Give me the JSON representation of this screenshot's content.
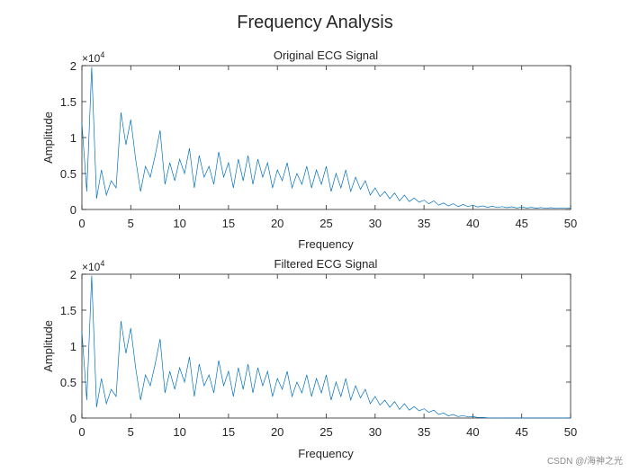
{
  "figure": {
    "title": "Frequency Analysis",
    "watermark": "CSDN @/海神之光"
  },
  "colors": {
    "series": "#0072BD",
    "axis": "#262626"
  },
  "chart_data": [
    {
      "type": "line",
      "title": "Original ECG Signal",
      "xlabel": "Frequency",
      "ylabel": "Amplitude",
      "xlim": [
        0,
        50
      ],
      "ylim": [
        0,
        20000
      ],
      "exponent_label": "×10",
      "exponent_power": "4",
      "xticks": [
        0,
        5,
        10,
        15,
        20,
        25,
        30,
        35,
        40,
        45,
        50
      ],
      "yticks": [
        0,
        5000,
        10000,
        15000,
        20000
      ],
      "ytick_labels": [
        "0",
        "0.5",
        "1",
        "1.5",
        "2"
      ],
      "x": [
        0,
        0.5,
        1,
        1.5,
        2,
        2.5,
        3,
        3.5,
        4,
        4.5,
        5,
        5.5,
        6,
        6.5,
        7,
        7.5,
        8,
        8.5,
        9,
        9.5,
        10,
        10.5,
        11,
        11.5,
        12,
        12.5,
        13,
        13.5,
        14,
        14.5,
        15,
        15.5,
        16,
        16.5,
        17,
        17.5,
        18,
        18.5,
        19,
        19.5,
        20,
        20.5,
        21,
        21.5,
        22,
        22.5,
        23,
        23.5,
        24,
        24.5,
        25,
        25.5,
        26,
        26.5,
        27,
        27.5,
        28,
        28.5,
        29,
        29.5,
        30,
        30.5,
        31,
        31.5,
        32,
        32.5,
        33,
        33.5,
        34,
        34.5,
        35,
        35.5,
        36,
        36.5,
        37,
        37.5,
        38,
        38.5,
        39,
        39.5,
        40,
        40.5,
        41,
        41.5,
        42,
        42.5,
        43,
        43.5,
        44,
        44.5,
        45,
        45.5,
        46,
        46.5,
        47,
        47.5,
        48,
        48.5,
        49,
        49.5,
        50
      ],
      "y": [
        12000,
        2500,
        19800,
        1500,
        5500,
        2000,
        4000,
        3000,
        13500,
        9000,
        12500,
        7000,
        2500,
        6000,
        4500,
        7500,
        11000,
        3500,
        6500,
        4000,
        7000,
        5000,
        8500,
        3000,
        7500,
        4500,
        6000,
        3500,
        8000,
        4500,
        6500,
        3000,
        7000,
        4000,
        7500,
        3500,
        7000,
        4500,
        6500,
        3000,
        5500,
        4000,
        6500,
        3000,
        5000,
        3500,
        6000,
        3000,
        5500,
        3500,
        6000,
        2500,
        5000,
        3000,
        5500,
        2500,
        4500,
        2800,
        4000,
        2000,
        3000,
        1800,
        2500,
        1500,
        2300,
        1200,
        2000,
        1100,
        1600,
        1000,
        1300,
        800,
        1200,
        600,
        900,
        500,
        800,
        400,
        700,
        400,
        600,
        350,
        500,
        300,
        450,
        280,
        400,
        250,
        380,
        200,
        350,
        200,
        300,
        180,
        280,
        150,
        250,
        150,
        220,
        150,
        200
      ]
    },
    {
      "type": "line",
      "title": "Filtered ECG Signal",
      "xlabel": "Frequency",
      "ylabel": "Amplitude",
      "xlim": [
        0,
        50
      ],
      "ylim": [
        0,
        20000
      ],
      "exponent_label": "×10",
      "exponent_power": "4",
      "xticks": [
        0,
        5,
        10,
        15,
        20,
        25,
        30,
        35,
        40,
        45,
        50
      ],
      "yticks": [
        0,
        5000,
        10000,
        15000,
        20000
      ],
      "ytick_labels": [
        "0",
        "0.5",
        "1",
        "1.5",
        "2"
      ],
      "x": [
        0,
        0.5,
        1,
        1.5,
        2,
        2.5,
        3,
        3.5,
        4,
        4.5,
        5,
        5.5,
        6,
        6.5,
        7,
        7.5,
        8,
        8.5,
        9,
        9.5,
        10,
        10.5,
        11,
        11.5,
        12,
        12.5,
        13,
        13.5,
        14,
        14.5,
        15,
        15.5,
        16,
        16.5,
        17,
        17.5,
        18,
        18.5,
        19,
        19.5,
        20,
        20.5,
        21,
        21.5,
        22,
        22.5,
        23,
        23.5,
        24,
        24.5,
        25,
        25.5,
        26,
        26.5,
        27,
        27.5,
        28,
        28.5,
        29,
        29.5,
        30,
        30.5,
        31,
        31.5,
        32,
        32.5,
        33,
        33.5,
        34,
        34.5,
        35,
        35.5,
        36,
        36.5,
        37,
        37.5,
        38,
        38.5,
        39,
        39.5,
        40,
        40.5,
        41,
        41.5,
        42,
        42.5,
        43,
        43.5,
        44,
        44.5,
        45,
        45.5,
        46,
        46.5,
        47,
        47.5,
        48,
        48.5,
        49,
        49.5,
        50
      ],
      "y": [
        12000,
        2500,
        19800,
        1500,
        5500,
        2000,
        4000,
        3000,
        13500,
        9000,
        12500,
        7000,
        2500,
        6000,
        4500,
        7500,
        11000,
        3500,
        6500,
        4000,
        7000,
        5000,
        8500,
        3000,
        7500,
        4500,
        6000,
        3500,
        8000,
        4500,
        6500,
        3000,
        7000,
        4000,
        7500,
        3500,
        7000,
        4500,
        6500,
        3000,
        5500,
        4000,
        6500,
        3000,
        5000,
        3500,
        6000,
        3000,
        5500,
        3500,
        6000,
        2500,
        5000,
        3000,
        5500,
        2500,
        4500,
        2800,
        4000,
        2000,
        3000,
        1800,
        2500,
        1500,
        2300,
        1200,
        2000,
        1100,
        1600,
        1000,
        1300,
        800,
        1100,
        500,
        700,
        300,
        500,
        200,
        350,
        150,
        200,
        80,
        80,
        40,
        20,
        0,
        0,
        0,
        0,
        0,
        0,
        0,
        0,
        0,
        0,
        0,
        0,
        0,
        0,
        0,
        0
      ]
    }
  ]
}
